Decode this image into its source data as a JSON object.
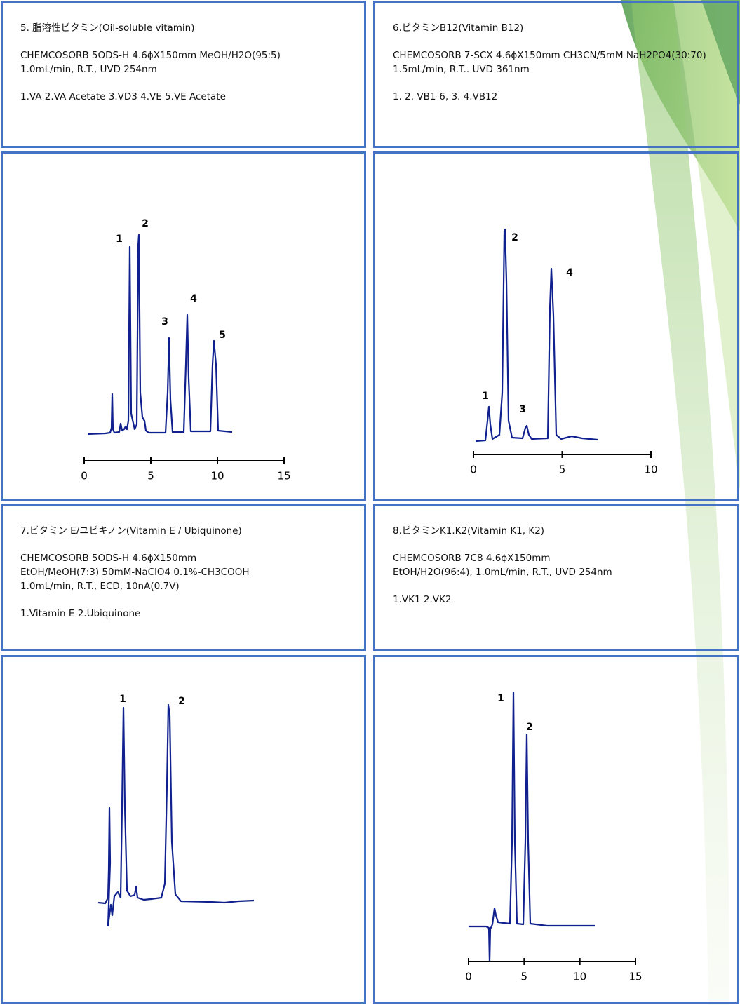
{
  "sections": [
    {
      "title": "5. 脂溶性ビタミン(Oil-soluble vitamin)",
      "lines": [
        "CHEMCOSORB 5ODS-H 4.6ϕX150mm MeOH/H2O(95:5)",
        "1.0mL/min, R.T., UVD 254nm"
      ],
      "legend": "1.VA 2.VA Acetate 3.VD3 4.VE 5.VE Acetate",
      "peaks": [
        "1",
        "2",
        "3",
        "4",
        "5"
      ],
      "xticks": [
        0,
        5,
        10,
        15
      ]
    },
    {
      "title": "6.ビタミンB12(Vitamin B12)",
      "lines": [
        "CHEMCOSORB 7-SCX 4.6ϕX150mm CH3CN/5mM NaH2PO4(30:70)",
        "1.5mL/min, R.T.. UVD 361nm"
      ],
      "legend": "1. 2. VB1-6, 3. 4.VB12",
      "peaks": [
        "1",
        "2",
        "3",
        "4"
      ],
      "xticks": [
        0,
        5,
        10
      ]
    },
    {
      "title": "7.ビタミン E/ユビキノン(Vitamin E / Ubiquinone)",
      "lines": [
        "CHEMCOSORB 5ODS-H 4.6ϕX150mm",
        "EtOH/MeOH(7:3) 50mM-NaClO4 0.1%-CH3COOH",
        "1.0mL/min, R.T., ECD, 10nA(0.7V)"
      ],
      "legend": "1.Vitamin E 2.Ubiquinone",
      "peaks": [
        "1",
        "2"
      ]
    },
    {
      "title": "8.ビタミンK1.K2(Vitamin K1, K2)",
      "lines": [
        "CHEMCOSORB 7C8 4.6ϕX150mm",
        "EtOH/H2O(96:4), 1.0mL/min, R.T., UVD 254nm"
      ],
      "legend": "1.VK1 2.VK2",
      "peaks": [
        "1",
        "2"
      ],
      "xticks": [
        0,
        5,
        10,
        15
      ]
    }
  ]
}
